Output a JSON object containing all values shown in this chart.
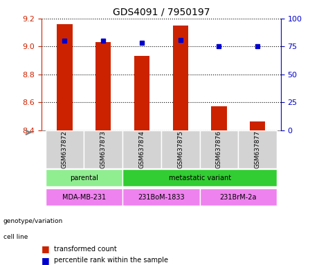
{
  "title": "GDS4091 / 7950197",
  "samples": [
    "GSM637872",
    "GSM637873",
    "GSM637874",
    "GSM637875",
    "GSM637876",
    "GSM637877"
  ],
  "transformed_counts": [
    9.16,
    9.03,
    8.93,
    9.15,
    8.57,
    8.46
  ],
  "percentile_ranks": [
    80,
    80,
    78,
    81,
    75,
    75
  ],
  "bar_color": "#cc2200",
  "dot_color": "#0000cc",
  "ylim_left": [
    8.4,
    9.2
  ],
  "ylim_right": [
    0,
    100
  ],
  "yticks_left": [
    8.4,
    8.6,
    8.8,
    9.0,
    9.2
  ],
  "yticks_right": [
    0,
    25,
    50,
    75,
    100
  ],
  "bg_color": "#ffffff",
  "grid_color": "#000000",
  "sample_bg": "#d3d3d3",
  "genotype_parental_color": "#90ee90",
  "genotype_metastatic_color": "#32cd32",
  "cell_line_mda_color": "#ee82ee",
  "cell_line_bom_color": "#ee82ee",
  "cell_line_brm_color": "#ee82ee",
  "genotype_groups": [
    {
      "label": "parental",
      "samples": [
        0,
        1
      ],
      "color": "#90ee90"
    },
    {
      "label": "metastatic variant",
      "samples": [
        2,
        3,
        4,
        5
      ],
      "color": "#32cd32"
    }
  ],
  "cell_line_groups": [
    {
      "label": "MDA-MB-231",
      "samples": [
        0,
        1
      ],
      "color": "#ee82ee"
    },
    {
      "label": "231BoM-1833",
      "samples": [
        2,
        3
      ],
      "color": "#ee82ee"
    },
    {
      "label": "231BrM-2a",
      "samples": [
        4,
        5
      ],
      "color": "#ee82ee"
    }
  ],
  "legend_items": [
    {
      "label": "transformed count",
      "color": "#cc2200",
      "marker": "s"
    },
    {
      "label": "percentile rank within the sample",
      "color": "#0000cc",
      "marker": "s"
    }
  ]
}
